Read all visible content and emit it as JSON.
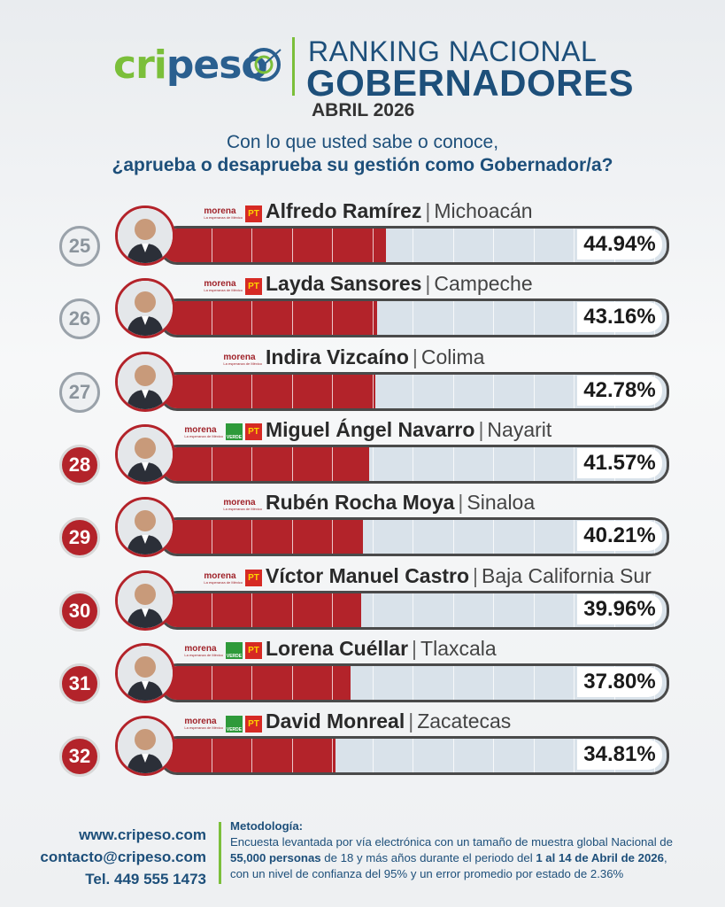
{
  "header": {
    "logo_part1": "cri",
    "logo_part2": "peso",
    "title_line1": "RANKING NACIONAL",
    "title_line2": "GOBERNADORES",
    "title_line3": "ABRIL 2026"
  },
  "question": {
    "line1": "Con lo que usted sabe o conoce,",
    "line2": "¿aprueba o desaprueba su gestión como Gobernador/a?"
  },
  "chart_data": {
    "type": "bar",
    "title": "RANKING NACIONAL GOBERNADORES",
    "subtitle": "ABRIL 2026",
    "value_unit": "%",
    "ylim": [
      0,
      100
    ],
    "categories": [
      "Alfredo Ramírez",
      "Layda Sansores",
      "Indira Vizcaíno",
      "Miguel Ángel Navarro",
      "Rubén Rocha Moya",
      "Víctor Manuel Castro",
      "Lorena Cuéllar",
      "David Monreal"
    ],
    "values": [
      44.94,
      43.16,
      42.78,
      41.57,
      40.21,
      39.96,
      37.8,
      34.81
    ]
  },
  "rows": [
    {
      "rank": "25",
      "name": "Alfredo Ramírez",
      "state": "Michoacán",
      "pct": "44.94%",
      "value": 44.94,
      "parties": [
        "morena",
        "pt"
      ],
      "rank_style": "gray"
    },
    {
      "rank": "26",
      "name": "Layda Sansores",
      "state": "Campeche",
      "pct": "43.16%",
      "value": 43.16,
      "parties": [
        "morena",
        "pt"
      ],
      "rank_style": "gray"
    },
    {
      "rank": "27",
      "name": "Indira Vizcaíno",
      "state": "Colima",
      "pct": "42.78%",
      "value": 42.78,
      "parties": [
        "morena"
      ],
      "rank_style": "gray"
    },
    {
      "rank": "28",
      "name": "Miguel Ángel Navarro",
      "state": "Nayarit",
      "pct": "41.57%",
      "value": 41.57,
      "parties": [
        "morena",
        "verde",
        "pt"
      ],
      "rank_style": "red"
    },
    {
      "rank": "29",
      "name": "Rubén Rocha Moya",
      "state": "Sinaloa",
      "pct": "40.21%",
      "value": 40.21,
      "parties": [
        "morena"
      ],
      "rank_style": "red"
    },
    {
      "rank": "30",
      "name": "Víctor Manuel Castro",
      "state": "Baja California Sur",
      "pct": "39.96%",
      "value": 39.96,
      "parties": [
        "morena",
        "pt"
      ],
      "rank_style": "red"
    },
    {
      "rank": "31",
      "name": "Lorena Cuéllar",
      "state": "Tlaxcala",
      "pct": "37.80%",
      "value": 37.8,
      "parties": [
        "morena",
        "verde",
        "pt"
      ],
      "rank_style": "red"
    },
    {
      "rank": "32",
      "name": "David Monreal",
      "state": "Zacatecas",
      "pct": "34.81%",
      "value": 34.81,
      "parties": [
        "morena",
        "verde",
        "pt"
      ],
      "rank_style": "red"
    }
  ],
  "party_labels": {
    "morena": "morena",
    "morena_sub": "La esperanza de México",
    "pt": "PT",
    "verde": "VERDE"
  },
  "footer": {
    "website": "www.cripeso.com",
    "email": "contacto@cripeso.com",
    "phone": "Tel. 449 555 1473",
    "method_title": "Metodología:",
    "method_text1": "Encuesta levantada por vía electrónica con un tamaño de muestra global Nacional de",
    "method_bold1": "55,000 personas",
    "method_text2": " de 18 y más años durante el periodo del ",
    "method_bold2": "1 al 14 de Abril de 2026",
    "method_text3": ",",
    "method_text4": "con un nivel de confianza del 95% y un error promedio por estado de 2.36%"
  },
  "colors": {
    "accent_red": "#b3232a",
    "brand_blue": "#1d4f7a",
    "brand_green": "#7bbf3a"
  }
}
